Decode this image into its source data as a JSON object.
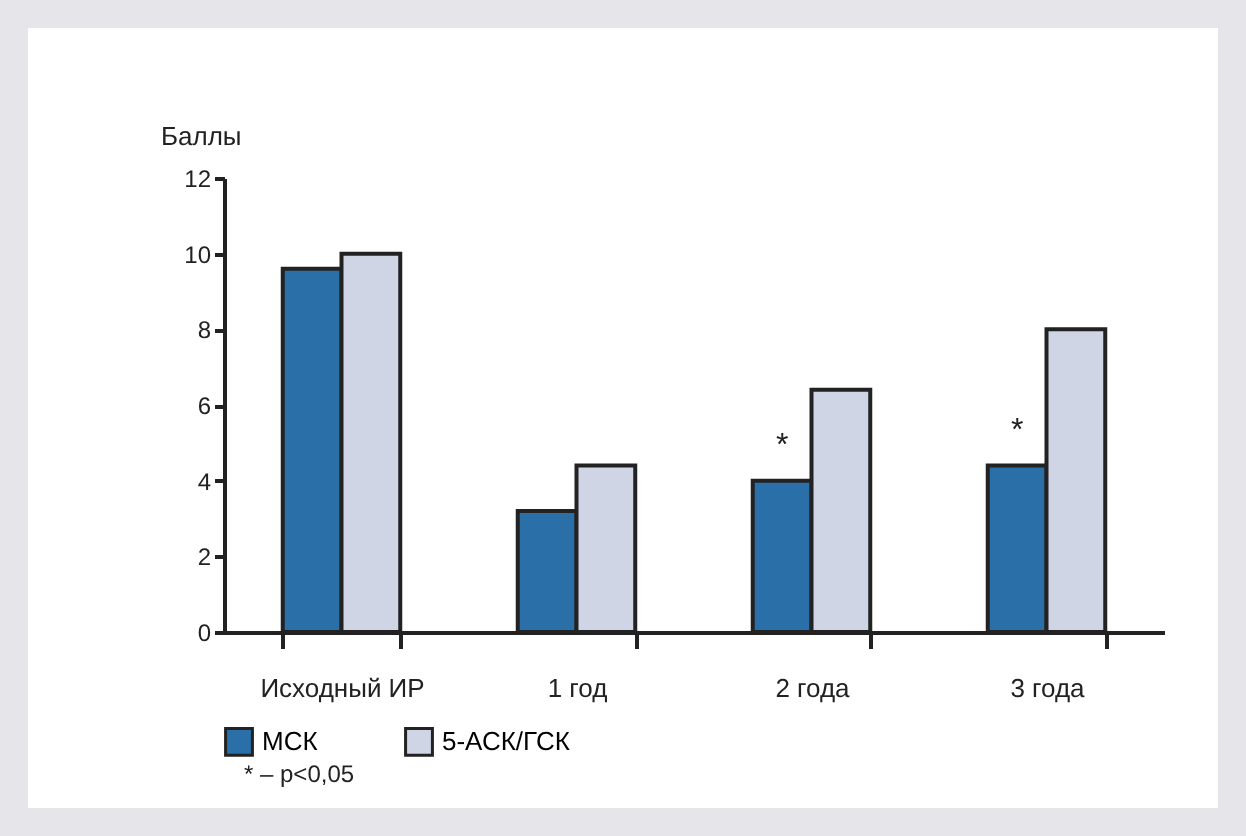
{
  "chart_data": {
    "type": "bar",
    "ylabel": "Баллы",
    "categories": [
      "Исходный ИР",
      "1 год",
      "2 года",
      "3 года"
    ],
    "series": [
      {
        "name": "МСК",
        "color": "#2a6fa8",
        "values": [
          9.6,
          3.2,
          4.0,
          4.4
        ]
      },
      {
        "name": "5-АСК/ГСК",
        "color": "#d0d5e6",
        "values": [
          10.0,
          4.4,
          6.4,
          8.0
        ]
      }
    ],
    "ylim": [
      0,
      12
    ],
    "yticks": [
      0,
      2,
      4,
      6,
      8,
      10,
      12
    ],
    "grid": false,
    "legend": "bottom",
    "annotations": [
      {
        "text": "*",
        "x": "2 года",
        "y": 4.0
      },
      {
        "text": "*",
        "x": "3 года",
        "y": 4.4
      },
      "* – p<0,05"
    ]
  }
}
